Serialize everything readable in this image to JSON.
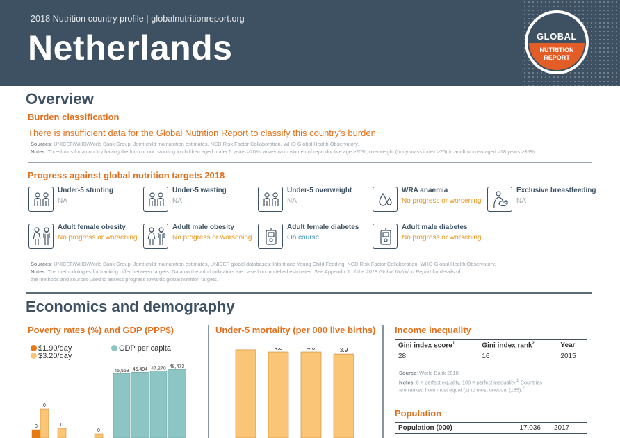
{
  "header": {
    "subtitle": "2018 Nutrition country profile  |  globalnutritionreport.org",
    "country": "Netherlands",
    "logo": {
      "line1": "GLOBAL",
      "line2": "NUTRITION",
      "line3": "REPORT"
    }
  },
  "overview": {
    "title": "Overview",
    "burden_heading": "Burden classification",
    "burden_text": "There is insufficient data for the Global Nutrition Report to classify this country's burden",
    "burden_sources_label": "Sources",
    "burden_sources": ": UNICEF/WHO/World Bank Group: Joint child malnutrition estimates, NCD Risk Factor Collaboration, WHO Global Health Observatory.",
    "burden_notes_label": "Notes",
    "burden_notes": ": Thresholds for a country having the form or not: stunting in children aged under 5 years ≥20%; anaemia in women of reproductive age ≥20%; overweight (body mass index ≥25) in adult women aged ≥18 years ≥35%.",
    "progress_heading": "Progress against global nutrition targets 2018",
    "targets": [
      {
        "label": "Under-5 stunting",
        "status": "NA",
        "kind": "na",
        "icon": "child-pair-icon"
      },
      {
        "label": "Under-5 wasting",
        "status": "NA",
        "kind": "na",
        "icon": "child-pair-icon"
      },
      {
        "label": "Under-5 overweight",
        "status": "NA",
        "kind": "na",
        "icon": "child-pair-icon"
      },
      {
        "label": "WRA anaemia",
        "status": "No progress or worsening",
        "kind": "nop",
        "icon": "blood-drop-icon"
      },
      {
        "label": "Exclusive breastfeeding",
        "status": "NA",
        "kind": "na",
        "icon": "breastfeeding-icon"
      },
      {
        "label": "Adult female obesity",
        "status": "No progress or worsening",
        "kind": "nop",
        "icon": "adult-pair-icon"
      },
      {
        "label": "Adult male obesity",
        "status": "No progress or worsening",
        "kind": "nop",
        "icon": "adult-pair-icon"
      },
      {
        "label": "Adult female diabetes",
        "status": "On course",
        "kind": "on",
        "icon": "glucose-meter-icon"
      },
      {
        "label": "Adult male diabetes",
        "status": "No progress or worsening",
        "kind": "nop",
        "icon": "glucose-meter-icon"
      }
    ],
    "progress_sources_label": "Sources",
    "progress_sources": ": UNICEF/WHO/World Bank Group: Joint child malnutrition estimates, UNICEF global databases: Infant and Young Child Feeding, NCD Risk Factor Collaboration, WHO Global Health Observatory.",
    "progress_notes_label": "Notes",
    "progress_notes_1": ": The methodologies for tracking differ between targets. Data on the adult indicators are based on modelled estimates. See Appendix 1 of the ",
    "progress_notes_report": "2018 Global Nutrition Report",
    "progress_notes_2": " for details of",
    "progress_notes_3": "the methods and sources used to assess progress towards global nutrition targets."
  },
  "economics": {
    "title": "Economics and demography",
    "poverty_heading": "Poverty rates (%) and GDP (PPP$)",
    "mortality_heading": "Under-5 mortality (per 000 live births)",
    "income_heading": "Income inequality",
    "income_table": {
      "headers": [
        "Gini index score",
        "Gini index rank",
        "Year"
      ],
      "header_sups": [
        "1",
        "2",
        ""
      ],
      "row": [
        "28",
        "16",
        "2015"
      ]
    },
    "income_source_label": "Source",
    "income_source": ": World Bank 2018.",
    "income_notes_label": "Notes",
    "income_notes_1": ": 0 = perfect equality, 100 = perfect inequality.",
    "income_notes_sup1": "1",
    "income_notes_2": " Countries",
    "income_notes_3": "are ranked from most equal (1) to most unequal (155).",
    "income_notes_sup2": "2",
    "population_heading": "Population",
    "population_row": [
      "Population (000)",
      "17,036",
      "2017"
    ],
    "colors": {
      "poverty_190": "#e8780f",
      "poverty_320": "#fac577",
      "gdp": "#8dc5c4",
      "mortality": "#fac577",
      "accent": "#e0701d",
      "navy": "#3e5163"
    }
  },
  "chart_data": [
    {
      "type": "bar",
      "title": "Poverty rates (%) and GDP (PPP$)",
      "series": [
        {
          "name": "$1.90/day",
          "values": [
            0,
            0
          ]
        },
        {
          "name": "$3.20/day",
          "values": [
            0,
            0,
            0
          ]
        },
        {
          "name": "GDP per capita",
          "values": [
            45568,
            46494,
            47270,
            48473
          ]
        }
      ],
      "value_labels": {
        "poverty_190": [
          "0",
          "0"
        ],
        "poverty_320": [
          "0",
          "0",
          "0"
        ],
        "gdp": [
          "45,568",
          "46,494",
          "47,270",
          "48,473"
        ]
      }
    },
    {
      "type": "bar",
      "title": "Under-5 mortality (per 000 live births)",
      "values": [
        4.1,
        4.0,
        4.0,
        3.9
      ],
      "value_labels": [
        "4.1",
        "4.0",
        "4.0",
        "3.9"
      ]
    }
  ]
}
